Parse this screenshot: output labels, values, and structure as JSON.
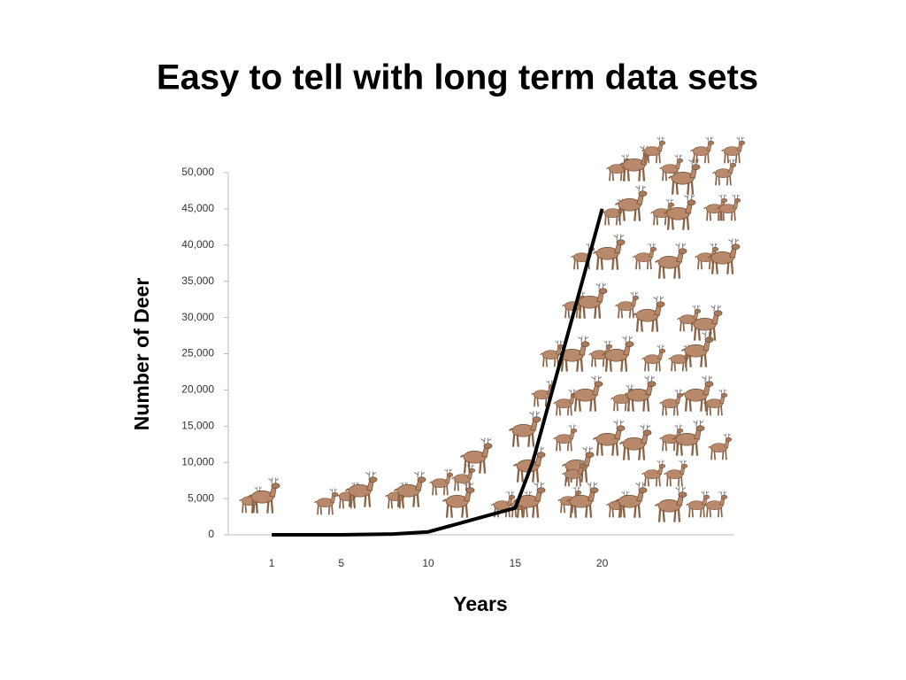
{
  "chart_data": {
    "type": "line",
    "title": "Easy to tell with long term data sets",
    "x_label": "Years",
    "y_label": "Number of Deer",
    "x": [
      1,
      5,
      8,
      10,
      15,
      16,
      20
    ],
    "series": [
      {
        "color": "#000000",
        "values": [
          0,
          0,
          100,
          400,
          3700,
          10000,
          45000
        ]
      }
    ],
    "xlim": [
      -1.5,
      27.6
    ],
    "xticks": [
      1,
      5,
      10,
      15,
      20
    ],
    "ylim": [
      0,
      50000
    ],
    "yticks": [
      0,
      {
        "value": 5000,
        "label": "5,000"
      },
      {
        "value": 10000,
        "label": "10,000"
      },
      {
        "value": 15000,
        "label": "15,000"
      },
      {
        "value": 20000,
        "label": "20,000"
      },
      {
        "value": 25000,
        "label": "25,000"
      },
      {
        "value": 30000,
        "label": "30,000"
      },
      {
        "value": 35000,
        "label": "35,000"
      },
      {
        "value": 40000,
        "label": "40,000"
      },
      {
        "value": 45000,
        "label": "45,000"
      },
      {
        "value": 50000,
        "label": "50,000"
      }
    ],
    "grid": false
  }
}
